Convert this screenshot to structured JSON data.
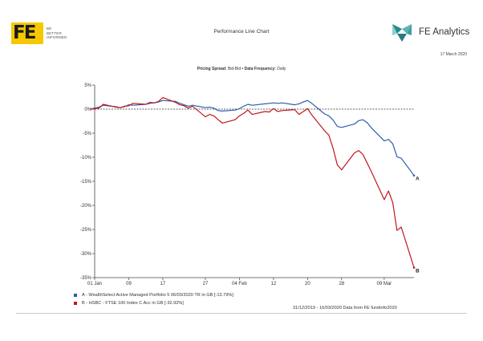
{
  "header": {
    "logo_text": "FE",
    "tagline": [
      "BE",
      "BETTER",
      "INFORMED"
    ],
    "title": "Performance Line Chart",
    "brand": "FE Analytics",
    "date": "17 March 2020"
  },
  "pricing": {
    "label1": "Pricing Spread:",
    "value1": "Bid-Bid",
    "separator": "•",
    "label2": "Data Frequency:",
    "value2": "Daily"
  },
  "colors": {
    "series_a": "#2e5ea8",
    "series_b": "#c2161c",
    "brand_yellow": "#f5c800",
    "brand_teal": "#1f8c8c"
  },
  "chart_data": {
    "type": "line",
    "title": "",
    "xlabel": "",
    "ylabel": "",
    "ylim": [
      -35,
      5
    ],
    "y_ticks": [
      5,
      0,
      -5,
      -10,
      -15,
      -20,
      -25,
      -30,
      -35
    ],
    "y_tick_labels": [
      "5%",
      "0%",
      "-5%",
      "-10%",
      "-15%",
      "-20%",
      "-25%",
      "-30%",
      "-35%"
    ],
    "x_domain": [
      "2020-01-01",
      "2020-03-16"
    ],
    "x_ticks": [
      "2020-01-01",
      "2020-01-09",
      "2020-01-17",
      "2020-01-27",
      "2020-02-04",
      "2020-02-12",
      "2020-02-20",
      "2020-02-28",
      "2020-03-09"
    ],
    "x_tick_labels": [
      "01 Jan",
      "09",
      "17",
      "27",
      "04 Feb",
      "12",
      "20",
      "28",
      "09 Mar"
    ],
    "grid": false,
    "zero_line": true,
    "series": [
      {
        "name": "A",
        "legend": "A - WealthSelect Active Managed Portfolio 5 06/03/2020 TR in GB [-13.79%]",
        "end_label": "A",
        "x": [
          "2019-12-31",
          "2020-01-02",
          "2020-01-03",
          "2020-01-06",
          "2020-01-07",
          "2020-01-08",
          "2020-01-09",
          "2020-01-10",
          "2020-01-13",
          "2020-01-14",
          "2020-01-15",
          "2020-01-16",
          "2020-01-17",
          "2020-01-20",
          "2020-01-21",
          "2020-01-22",
          "2020-01-23",
          "2020-01-24",
          "2020-01-27",
          "2020-01-28",
          "2020-01-29",
          "2020-01-30",
          "2020-01-31",
          "2020-02-03",
          "2020-02-04",
          "2020-02-05",
          "2020-02-06",
          "2020-02-07",
          "2020-02-10",
          "2020-02-11",
          "2020-02-12",
          "2020-02-13",
          "2020-02-14",
          "2020-02-17",
          "2020-02-18",
          "2020-02-19",
          "2020-02-20",
          "2020-02-21",
          "2020-02-24",
          "2020-02-25",
          "2020-02-26",
          "2020-02-27",
          "2020-02-28",
          "2020-03-02",
          "2020-03-03",
          "2020-03-04",
          "2020-03-05",
          "2020-03-06",
          "2020-03-09",
          "2020-03-10",
          "2020-03-11",
          "2020-03-12",
          "2020-03-13",
          "2020-03-16"
        ],
        "y": [
          0,
          0.4,
          0.8,
          0.5,
          0.3,
          0.5,
          0.9,
          0.8,
          1.0,
          1.2,
          1.3,
          1.5,
          1.8,
          1.6,
          1.2,
          0.9,
          0.6,
          0.8,
          0.3,
          0.4,
          0.2,
          -0.3,
          -0.4,
          -0.2,
          0.1,
          0.6,
          1.0,
          0.8,
          1.1,
          1.2,
          1.3,
          1.2,
          1.3,
          0.9,
          1.1,
          1.5,
          1.8,
          1.2,
          -1.0,
          -1.4,
          -2.3,
          -3.6,
          -3.8,
          -3.1,
          -2.4,
          -2.2,
          -2.8,
          -3.9,
          -6.6,
          -6.3,
          -7.2,
          -9.9,
          -10.2,
          -13.79
        ]
      },
      {
        "name": "B",
        "legend": "B - HSBC - FTSE 100 Index C Acc in GB [-32.92%]",
        "end_label": "B",
        "x": [
          "2019-12-31",
          "2020-01-02",
          "2020-01-03",
          "2020-01-06",
          "2020-01-07",
          "2020-01-08",
          "2020-01-09",
          "2020-01-10",
          "2020-01-13",
          "2020-01-14",
          "2020-01-15",
          "2020-01-16",
          "2020-01-17",
          "2020-01-20",
          "2020-01-21",
          "2020-01-22",
          "2020-01-23",
          "2020-01-24",
          "2020-01-27",
          "2020-01-28",
          "2020-01-29",
          "2020-01-30",
          "2020-01-31",
          "2020-02-03",
          "2020-02-04",
          "2020-02-05",
          "2020-02-06",
          "2020-02-07",
          "2020-02-10",
          "2020-02-11",
          "2020-02-12",
          "2020-02-13",
          "2020-02-14",
          "2020-02-17",
          "2020-02-18",
          "2020-02-19",
          "2020-02-20",
          "2020-02-21",
          "2020-02-24",
          "2020-02-25",
          "2020-02-26",
          "2020-02-27",
          "2020-02-28",
          "2020-03-02",
          "2020-03-03",
          "2020-03-04",
          "2020-03-05",
          "2020-03-06",
          "2020-03-09",
          "2020-03-10",
          "2020-03-11",
          "2020-03-12",
          "2020-03-13",
          "2020-03-16"
        ],
        "y": [
          0,
          0.2,
          1.0,
          0.4,
          0.3,
          0.6,
          0.7,
          1.2,
          1.0,
          1.4,
          1.3,
          1.6,
          2.4,
          1.4,
          0.9,
          0.7,
          0.2,
          0.6,
          -1.6,
          -1.1,
          -1.4,
          -2.2,
          -2.9,
          -2.2,
          -1.4,
          -0.9,
          -0.2,
          -1.1,
          -0.5,
          -0.6,
          0.1,
          -0.5,
          -0.3,
          -0.1,
          -1.1,
          -0.5,
          0.1,
          -1.2,
          -4.5,
          -5.4,
          -8.2,
          -11.6,
          -12.6,
          -9.1,
          -8.6,
          -9.4,
          -11.2,
          -13.0,
          -18.8,
          -17.0,
          -19.4,
          -25.2,
          -24.5,
          -32.92
        ]
      }
    ]
  },
  "footer": {
    "range": "31/12/2019 - 16/03/2020 Data from FE fundinfo2020"
  }
}
